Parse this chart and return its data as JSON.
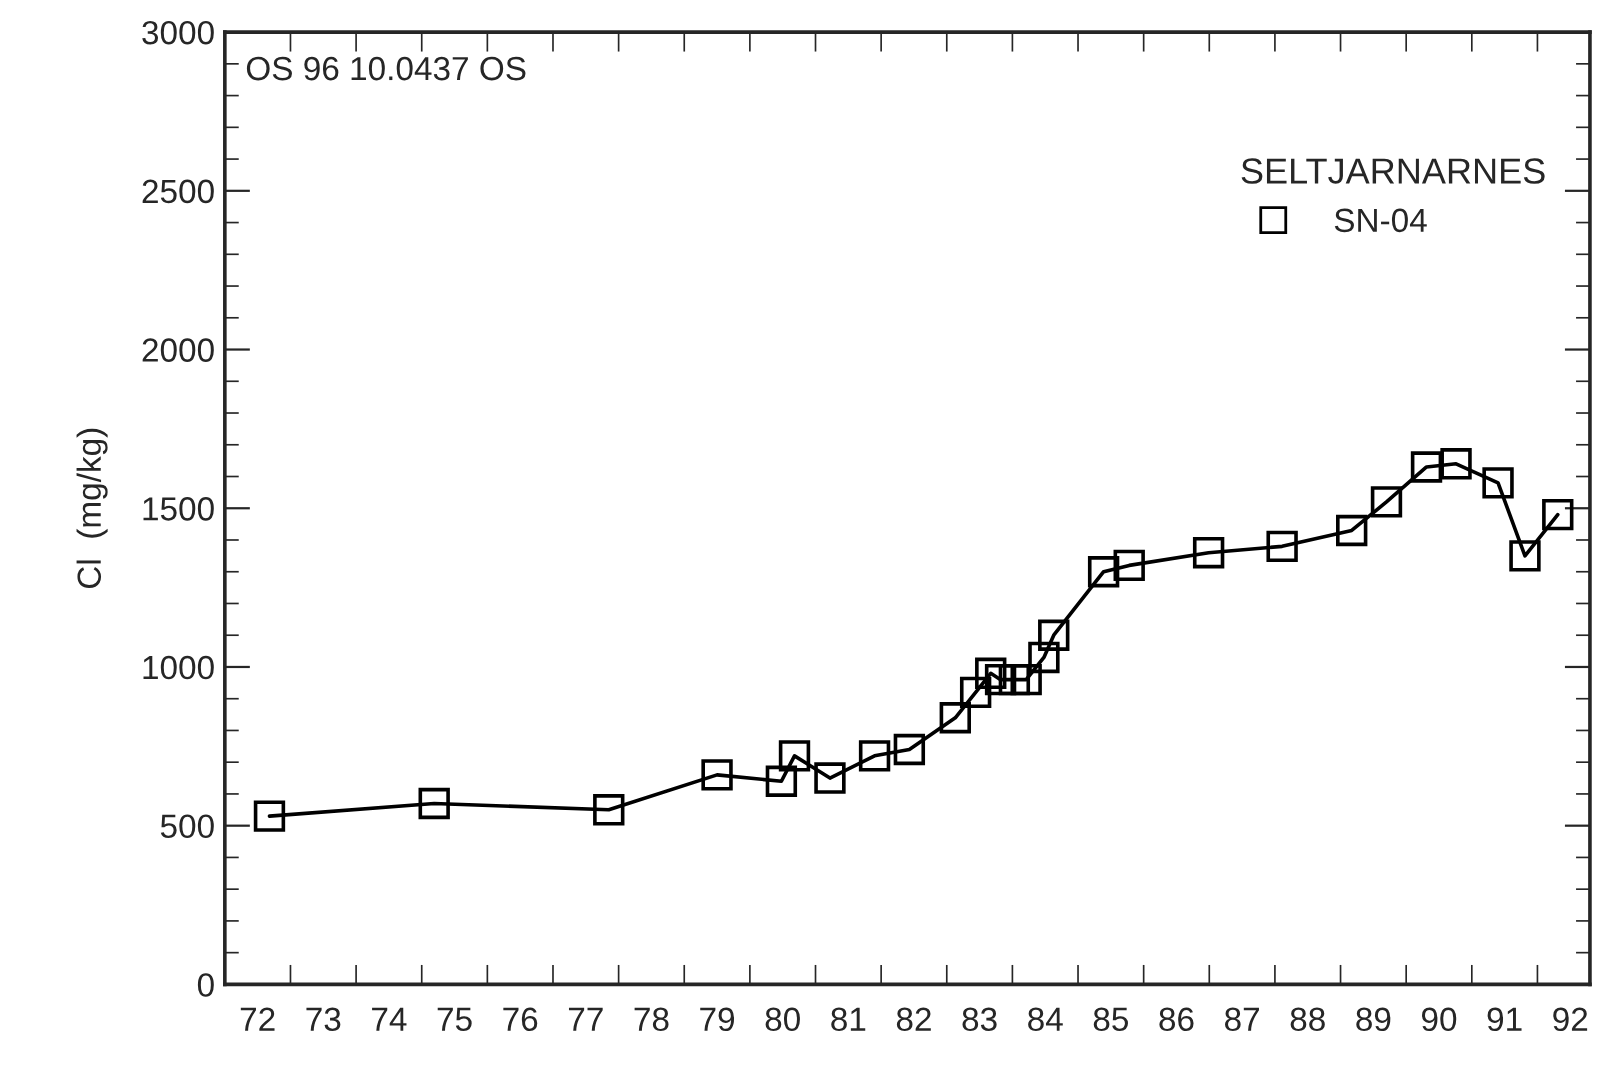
{
  "chart_data": {
    "type": "line",
    "ylabel": "Cl  (mg/kg)",
    "legend_title": "SELTJARNARNES",
    "annotations": [
      "OS 96 10.0437 OS"
    ],
    "series": [
      {
        "name": "SN-04",
        "color": "#000000",
        "x": [
          72.68,
          75.19,
          77.85,
          79.5,
          80.48,
          80.68,
          81.22,
          81.9,
          82.43,
          83.13,
          83.44,
          83.67,
          83.82,
          84.03,
          84.21,
          84.48,
          84.63,
          85.39,
          85.78,
          86.99,
          88.11,
          89.17,
          89.7,
          90.31,
          90.76,
          91.4,
          91.81,
          92.31
        ],
        "values": [
          530,
          570,
          550,
          660,
          640,
          720,
          650,
          720,
          740,
          840,
          920,
          980,
          960,
          960,
          960,
          1030,
          1100,
          1300,
          1320,
          1360,
          1380,
          1430,
          1520,
          1630,
          1640,
          1580,
          1350,
          1480
        ]
      }
    ],
    "marker": "square",
    "line_style": "solid",
    "legend": "top right",
    "grid": false,
    "xlim": [
      72,
      92.8
    ],
    "xticks": [
      {
        "value": 72.5,
        "label": "72"
      },
      {
        "value": 73,
        "label": null
      },
      {
        "value": 73.5,
        "label": "73"
      },
      {
        "value": 74,
        "label": null
      },
      {
        "value": 74.5,
        "label": "74"
      },
      {
        "value": 75,
        "label": null
      },
      {
        "value": 75.5,
        "label": "75"
      },
      {
        "value": 76,
        "label": null
      },
      {
        "value": 76.5,
        "label": "76"
      },
      {
        "value": 77,
        "label": null
      },
      {
        "value": 77.5,
        "label": "77"
      },
      {
        "value": 78,
        "label": null
      },
      {
        "value": 78.5,
        "label": "78"
      },
      {
        "value": 79,
        "label": null
      },
      {
        "value": 79.5,
        "label": "79"
      },
      {
        "value": 80,
        "label": null
      },
      {
        "value": 80.5,
        "label": "80"
      },
      {
        "value": 81,
        "label": null
      },
      {
        "value": 81.5,
        "label": "81"
      },
      {
        "value": 82,
        "label": null
      },
      {
        "value": 82.5,
        "label": "82"
      },
      {
        "value": 83,
        "label": null
      },
      {
        "value": 83.5,
        "label": "83"
      },
      {
        "value": 84,
        "label": null
      },
      {
        "value": 84.5,
        "label": "84"
      },
      {
        "value": 85,
        "label": null
      },
      {
        "value": 85.5,
        "label": "85"
      },
      {
        "value": 86,
        "label": null
      },
      {
        "value": 86.5,
        "label": "86"
      },
      {
        "value": 87,
        "label": null
      },
      {
        "value": 87.5,
        "label": "87"
      },
      {
        "value": 88,
        "label": null
      },
      {
        "value": 88.5,
        "label": "88"
      },
      {
        "value": 89,
        "label": null
      },
      {
        "value": 89.5,
        "label": "89"
      },
      {
        "value": 90,
        "label": null
      },
      {
        "value": 90.5,
        "label": "90"
      },
      {
        "value": 91,
        "label": null
      },
      {
        "value": 91.5,
        "label": "91"
      },
      {
        "value": 92,
        "label": null
      },
      {
        "value": 92.5,
        "label": "92"
      }
    ],
    "ylim": [
      0,
      3000
    ],
    "yticks": [
      0,
      {
        "value": 100,
        "label": null
      },
      {
        "value": 200,
        "label": null
      },
      {
        "value": 300,
        "label": null
      },
      {
        "value": 400,
        "label": null
      },
      500,
      {
        "value": 600,
        "label": null
      },
      {
        "value": 700,
        "label": null
      },
      {
        "value": 800,
        "label": null
      },
      {
        "value": 900,
        "label": null
      },
      1000,
      {
        "value": 1100,
        "label": null
      },
      {
        "value": 1200,
        "label": null
      },
      {
        "value": 1300,
        "label": null
      },
      {
        "value": 1400,
        "label": null
      },
      1500,
      {
        "value": 1600,
        "label": null
      },
      {
        "value": 1700,
        "label": null
      },
      {
        "value": 1800,
        "label": null
      },
      {
        "value": 1900,
        "label": null
      },
      2000,
      {
        "value": 2100,
        "label": null
      },
      {
        "value": 2200,
        "label": null
      },
      {
        "value": 2300,
        "label": null
      },
      {
        "value": 2400,
        "label": null
      },
      2500,
      {
        "value": 2600,
        "label": null
      },
      {
        "value": 2700,
        "label": null
      },
      {
        "value": 2800,
        "label": null
      },
      {
        "value": 2900,
        "label": null
      },
      3000
    ]
  }
}
